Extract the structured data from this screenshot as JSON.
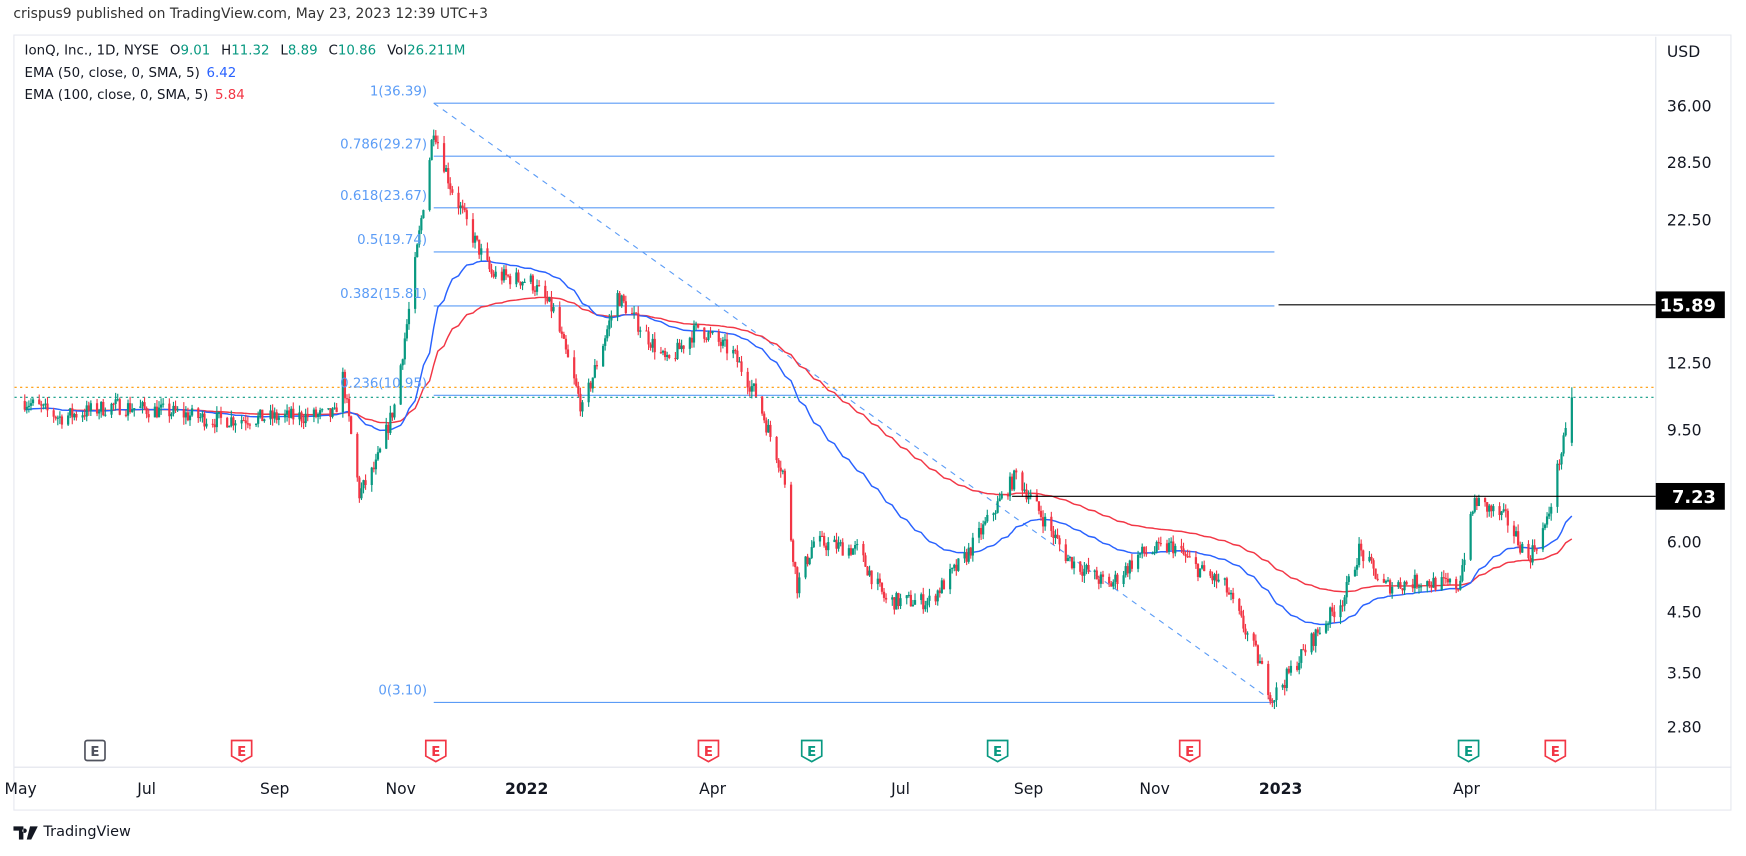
{
  "publish_line": "crispus9 published on TradingView.com, May 23, 2023 12:39 UTC+3",
  "legend": {
    "symbol": "IonQ, Inc., 1D, NYSE",
    "open_label": "O",
    "open": "9.01",
    "high_label": "H",
    "high": "11.32",
    "low_label": "L",
    "low": "8.89",
    "close_label": "C",
    "close": "10.86",
    "vol_label": "Vol",
    "vol": "26.211M",
    "ema50_label": "EMA (50, close, 0, SMA, 5)",
    "ema50_value": "6.42",
    "ema100_label": "EMA (100, close, 0, SMA, 5)",
    "ema100_value": "5.84"
  },
  "brand": "TradingView",
  "colors": {
    "up": "#089981",
    "down": "#f23645",
    "ema50": "#2962ff",
    "ema100": "#f23645",
    "fib": "#5b9cf6",
    "high_line": "#ff9800",
    "close_line": "#089981",
    "level": "#000000"
  },
  "chart_data": {
    "type": "candlestick",
    "yscale": "log",
    "currency": "USD",
    "ylim": [
      2.6,
      40
    ],
    "y_ticks": [
      "36.00",
      "28.50",
      "22.50",
      "12.50",
      "9.50",
      "6.00",
      "4.50",
      "3.50",
      "2.80"
    ],
    "x_ticks": [
      {
        "label": "May",
        "date": "2021-05-01"
      },
      {
        "label": "Jul",
        "date": "2021-07-01"
      },
      {
        "label": "Sep",
        "date": "2021-09-01"
      },
      {
        "label": "Nov",
        "date": "2021-11-01"
      },
      {
        "label": "2022",
        "date": "2022-01-01",
        "bold": true
      },
      {
        "label": "Apr",
        "date": "2022-04-01"
      },
      {
        "label": "Jul",
        "date": "2022-07-01"
      },
      {
        "label": "Sep",
        "date": "2022-09-01"
      },
      {
        "label": "Nov",
        "date": "2022-11-01"
      },
      {
        "label": "2023",
        "date": "2023-01-01",
        "bold": true
      },
      {
        "label": "Apr",
        "date": "2023-04-01"
      }
    ],
    "close_path": [
      [
        "2021-05-03",
        10.7
      ],
      [
        "2021-05-20",
        10.0
      ],
      [
        "2021-06-15",
        10.5
      ],
      [
        "2021-07-15",
        10.2
      ],
      [
        "2021-08-02",
        9.9
      ],
      [
        "2021-09-30",
        10.1
      ],
      [
        "2021-10-04",
        11.8
      ],
      [
        "2021-10-12",
        7.3
      ],
      [
        "2021-10-20",
        8.2
      ],
      [
        "2021-10-29",
        10.5
      ],
      [
        "2021-11-05",
        15.5
      ],
      [
        "2021-11-17",
        33.0
      ],
      [
        "2021-11-25",
        26.0
      ],
      [
        "2021-12-06",
        21.0
      ],
      [
        "2021-12-15",
        18.0
      ],
      [
        "2022-01-03",
        17.5
      ],
      [
        "2022-01-14",
        15.5
      ],
      [
        "2022-01-28",
        10.3
      ],
      [
        "2022-02-14",
        16.5
      ],
      [
        "2022-03-10",
        12.5
      ],
      [
        "2022-03-25",
        14.5
      ],
      [
        "2022-04-11",
        13.0
      ],
      [
        "2022-04-22",
        11.0
      ],
      [
        "2022-05-05",
        8.0
      ],
      [
        "2022-05-12",
        5.0
      ],
      [
        "2022-05-20",
        6.0
      ],
      [
        "2022-06-10",
        5.8
      ],
      [
        "2022-06-24",
        4.7
      ],
      [
        "2022-07-15",
        4.7
      ],
      [
        "2022-08-01",
        5.6
      ],
      [
        "2022-08-15",
        6.8
      ],
      [
        "2022-08-26",
        7.9
      ],
      [
        "2022-09-06",
        6.8
      ],
      [
        "2022-09-20",
        5.6
      ],
      [
        "2022-10-10",
        5.0
      ],
      [
        "2022-10-25",
        5.7
      ],
      [
        "2022-11-10",
        5.9
      ],
      [
        "2022-11-21",
        5.4
      ],
      [
        "2022-12-05",
        5.0
      ],
      [
        "2022-12-20",
        3.8
      ],
      [
        "2022-12-28",
        3.15
      ],
      [
        "2023-01-16",
        4.0
      ],
      [
        "2023-02-01",
        4.8
      ],
      [
        "2023-02-08",
        5.8
      ],
      [
        "2023-02-20",
        5.0
      ],
      [
        "2023-03-10",
        5.1
      ],
      [
        "2023-03-28",
        5.0
      ],
      [
        "2023-04-05",
        7.1
      ],
      [
        "2023-04-20",
        6.6
      ],
      [
        "2023-05-01",
        5.6
      ],
      [
        "2023-05-10",
        6.5
      ],
      [
        "2023-05-16",
        8.4
      ],
      [
        "2023-05-19",
        9.3
      ],
      [
        "2023-05-22",
        10.86
      ]
    ],
    "last_bar": {
      "open": 9.01,
      "high": 11.32,
      "low": 8.89,
      "close": 10.86
    },
    "ema50_last": 6.42,
    "ema100_last": 5.84,
    "fib": {
      "start": {
        "date": "2021-11-17",
        "price": 36.39
      },
      "end": {
        "date": "2022-12-29",
        "price": 3.1
      },
      "levels": [
        {
          "label": "1(36.39)",
          "price": 36.39
        },
        {
          "label": "0.786(29.27)",
          "price": 29.27
        },
        {
          "label": "0.618(23.67)",
          "price": 23.67
        },
        {
          "label": "0.5(19.74)",
          "price": 19.74
        },
        {
          "label": "0.382(15.81)",
          "price": 15.81
        },
        {
          "label": "0.236(10.95)",
          "price": 10.95
        },
        {
          "label": "0(3.10)",
          "price": 3.1
        }
      ]
    },
    "horizontal_levels": [
      {
        "label": "15.89",
        "price": 15.89,
        "from": "2022-12-31"
      },
      {
        "label": "7.23",
        "price": 7.23,
        "from": "2022-08-24"
      }
    ],
    "earnings": [
      {
        "date": "2021-06-06",
        "kind": "future-neutral"
      },
      {
        "date": "2021-08-16",
        "kind": "miss"
      },
      {
        "date": "2021-11-18",
        "kind": "miss"
      },
      {
        "date": "2022-03-30",
        "kind": "miss"
      },
      {
        "date": "2022-05-19",
        "kind": "beat"
      },
      {
        "date": "2022-08-17",
        "kind": "beat"
      },
      {
        "date": "2022-11-18",
        "kind": "miss"
      },
      {
        "date": "2023-04-02",
        "kind": "beat"
      },
      {
        "date": "2023-05-14",
        "kind": "miss"
      }
    ],
    "earnings_label": "E"
  }
}
